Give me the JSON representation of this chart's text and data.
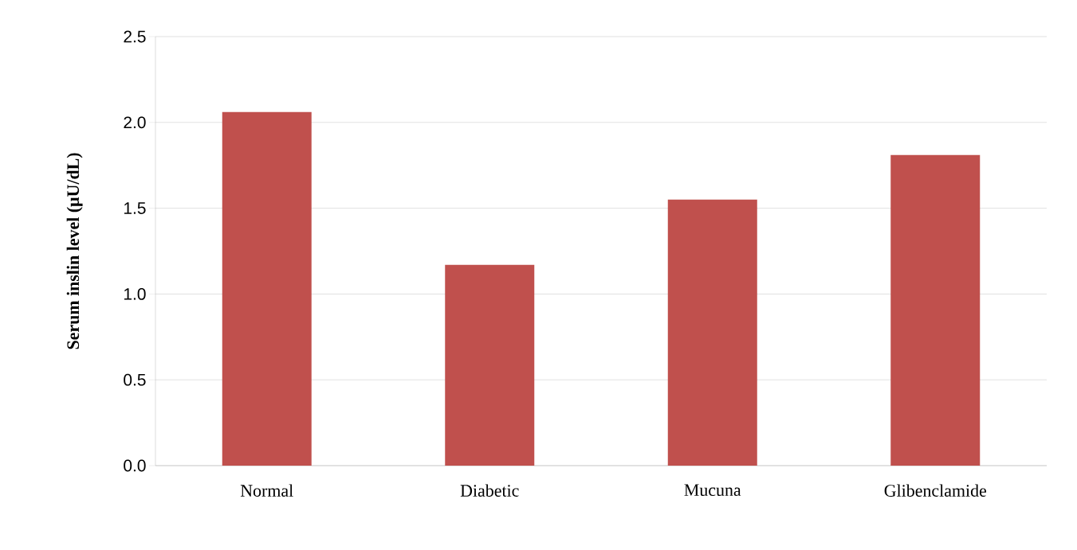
{
  "chart_data": {
    "type": "bar",
    "ylabel": "Serum inslin level (μU/dL)",
    "categories": [
      "Normal",
      "Diabetic",
      "Mucuna",
      "Glibenclamide"
    ],
    "values": [
      2.06,
      1.17,
      1.55,
      1.81
    ],
    "color": "#c0504d",
    "ylim": [
      0,
      2.5
    ],
    "yticks": [
      {
        "value": 0,
        "label": "0.0"
      },
      0.5,
      {
        "value": 1,
        "label": "1.0"
      },
      1.5,
      {
        "value": 2,
        "label": "2.0"
      },
      2.5
    ],
    "grid": "y"
  }
}
